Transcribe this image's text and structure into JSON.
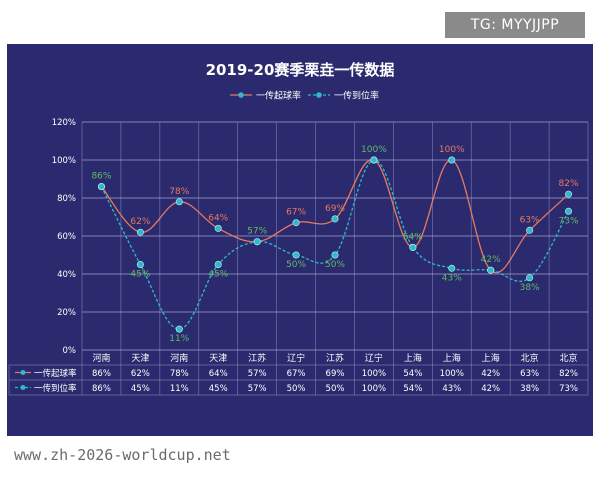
{
  "overlay": {
    "tg_label": "TG: MYYJJPP",
    "site_url": "www.zh-2026-worldcup.net"
  },
  "colors": {
    "panel_bg": "#2c2a6e",
    "series1": "#e57a5f",
    "series2": "#2fb9c9",
    "label1": "#e57a5f",
    "label2": "#5dbb63",
    "grid": "#bdbde0"
  },
  "chart_data": {
    "type": "line",
    "title": "2019-20赛季栗垚一传数据",
    "xlabel": "",
    "ylabel": "",
    "categories": [
      "河南",
      "天津",
      "河南",
      "天津",
      "江苏",
      "辽宁",
      "江苏",
      "辽宁",
      "上海",
      "上海",
      "上海",
      "北京",
      "北京"
    ],
    "series": [
      {
        "name": "一传起球率",
        "values": [
          86,
          62,
          78,
          64,
          57,
          67,
          69,
          100,
          54,
          100,
          42,
          63,
          82
        ],
        "labels": [
          "86%",
          "62%",
          "78%",
          "64%",
          "57%",
          "67%",
          "69%",
          "100%",
          "54%",
          "100%",
          "42%",
          "63%",
          "82%"
        ],
        "line_style": "solid",
        "color": "#e57a5f",
        "label_color": "#e57a5f"
      },
      {
        "name": "一传到位率",
        "values": [
          86,
          45,
          11,
          45,
          57,
          50,
          50,
          100,
          54,
          43,
          42,
          38,
          73
        ],
        "labels": [
          "86%",
          "45%",
          "11%",
          "45%",
          "57%",
          "50%",
          "50%",
          "100%",
          "54%",
          "43%",
          "42%",
          "38%",
          "73%"
        ],
        "line_style": "dashed",
        "color": "#2fb9c9",
        "label_color": "#5dbb63"
      }
    ],
    "ylim": [
      0,
      120
    ],
    "yticks": [
      0,
      20,
      40,
      60,
      80,
      100,
      120
    ],
    "ytick_labels": [
      "0%",
      "20%",
      "40%",
      "60%",
      "80%",
      "100%",
      "120%"
    ],
    "grid": true,
    "legend_position": "top-center",
    "data_table": true
  }
}
